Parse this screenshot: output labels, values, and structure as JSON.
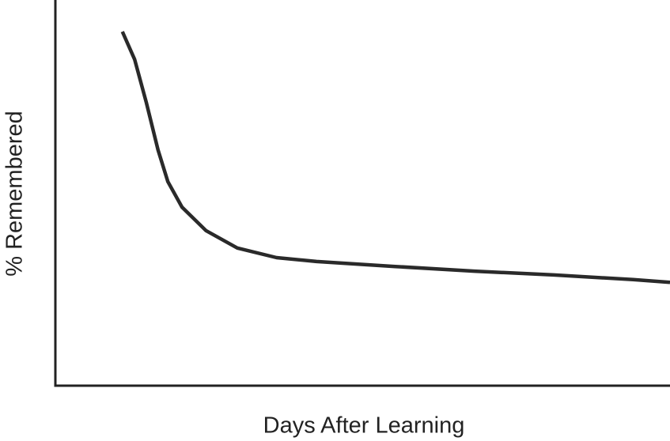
{
  "chart_data": {
    "type": "line",
    "x_label": "Days After Learning",
    "y_label": "% Remembered",
    "xlim": [
      0,
      100
    ],
    "ylim": [
      0,
      100
    ],
    "color": "#2a2a2a",
    "x": [
      10.9,
      12.9,
      14.8,
      16.7,
      18.3,
      20.6,
      24.5,
      29.6,
      36.0,
      42.5,
      55.3,
      68.2,
      81.1,
      94.0,
      100
    ],
    "values": [
      91.8,
      84.6,
      73.4,
      61.1,
      52.9,
      46.3,
      40.2,
      35.7,
      33.2,
      32.2,
      30.9,
      29.7,
      28.7,
      27.5,
      26.8
    ]
  }
}
